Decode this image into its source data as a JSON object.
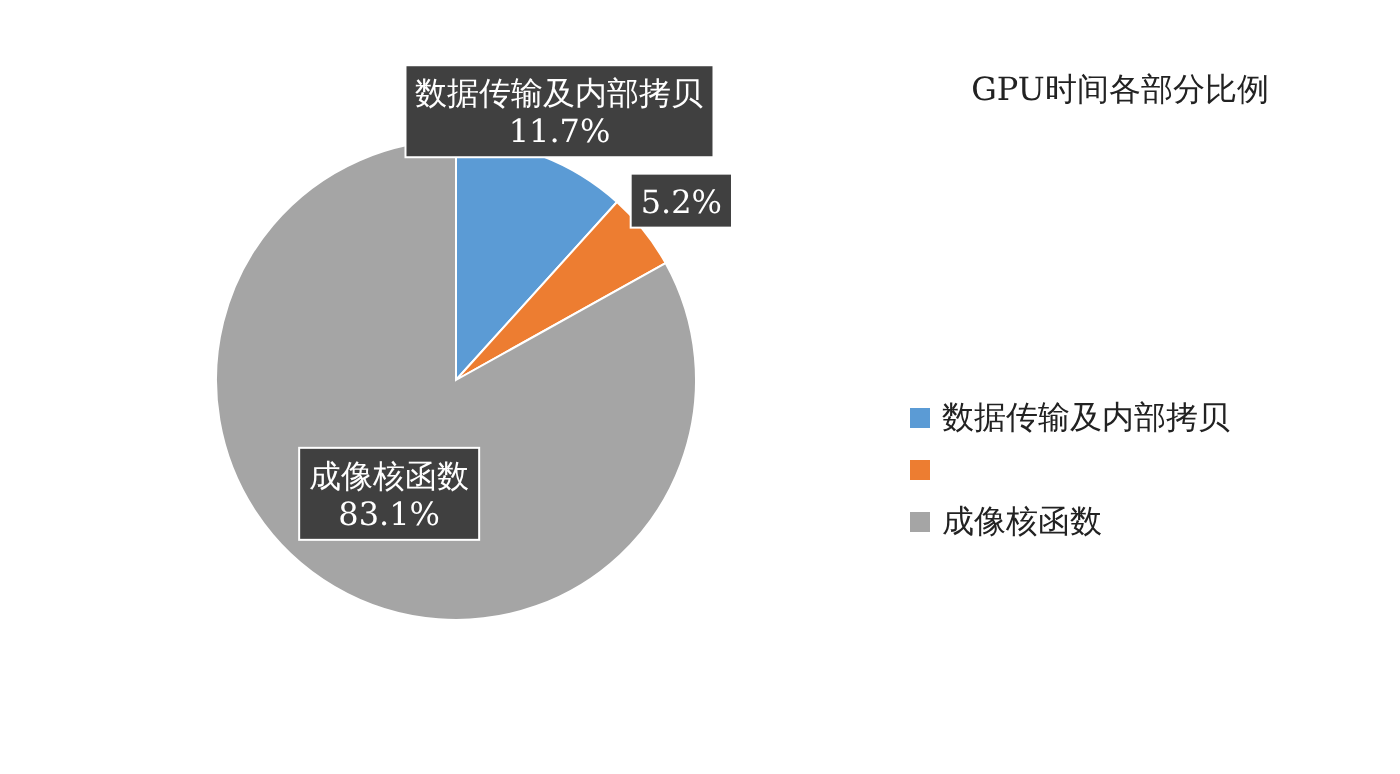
{
  "chart_data": {
    "type": "pie",
    "title": "GPU时间各部分比例",
    "categories": [
      "数据传输及内部拷贝",
      null,
      "成像核函数"
    ],
    "values": [
      11.7,
      5.2,
      83.1
    ],
    "colors": [
      "#5b9bd5",
      "#ed7d31",
      "#a5a5a5"
    ],
    "value_labels": [
      "11.7%",
      "5.2%",
      "83.1%"
    ],
    "legend": "right"
  }
}
